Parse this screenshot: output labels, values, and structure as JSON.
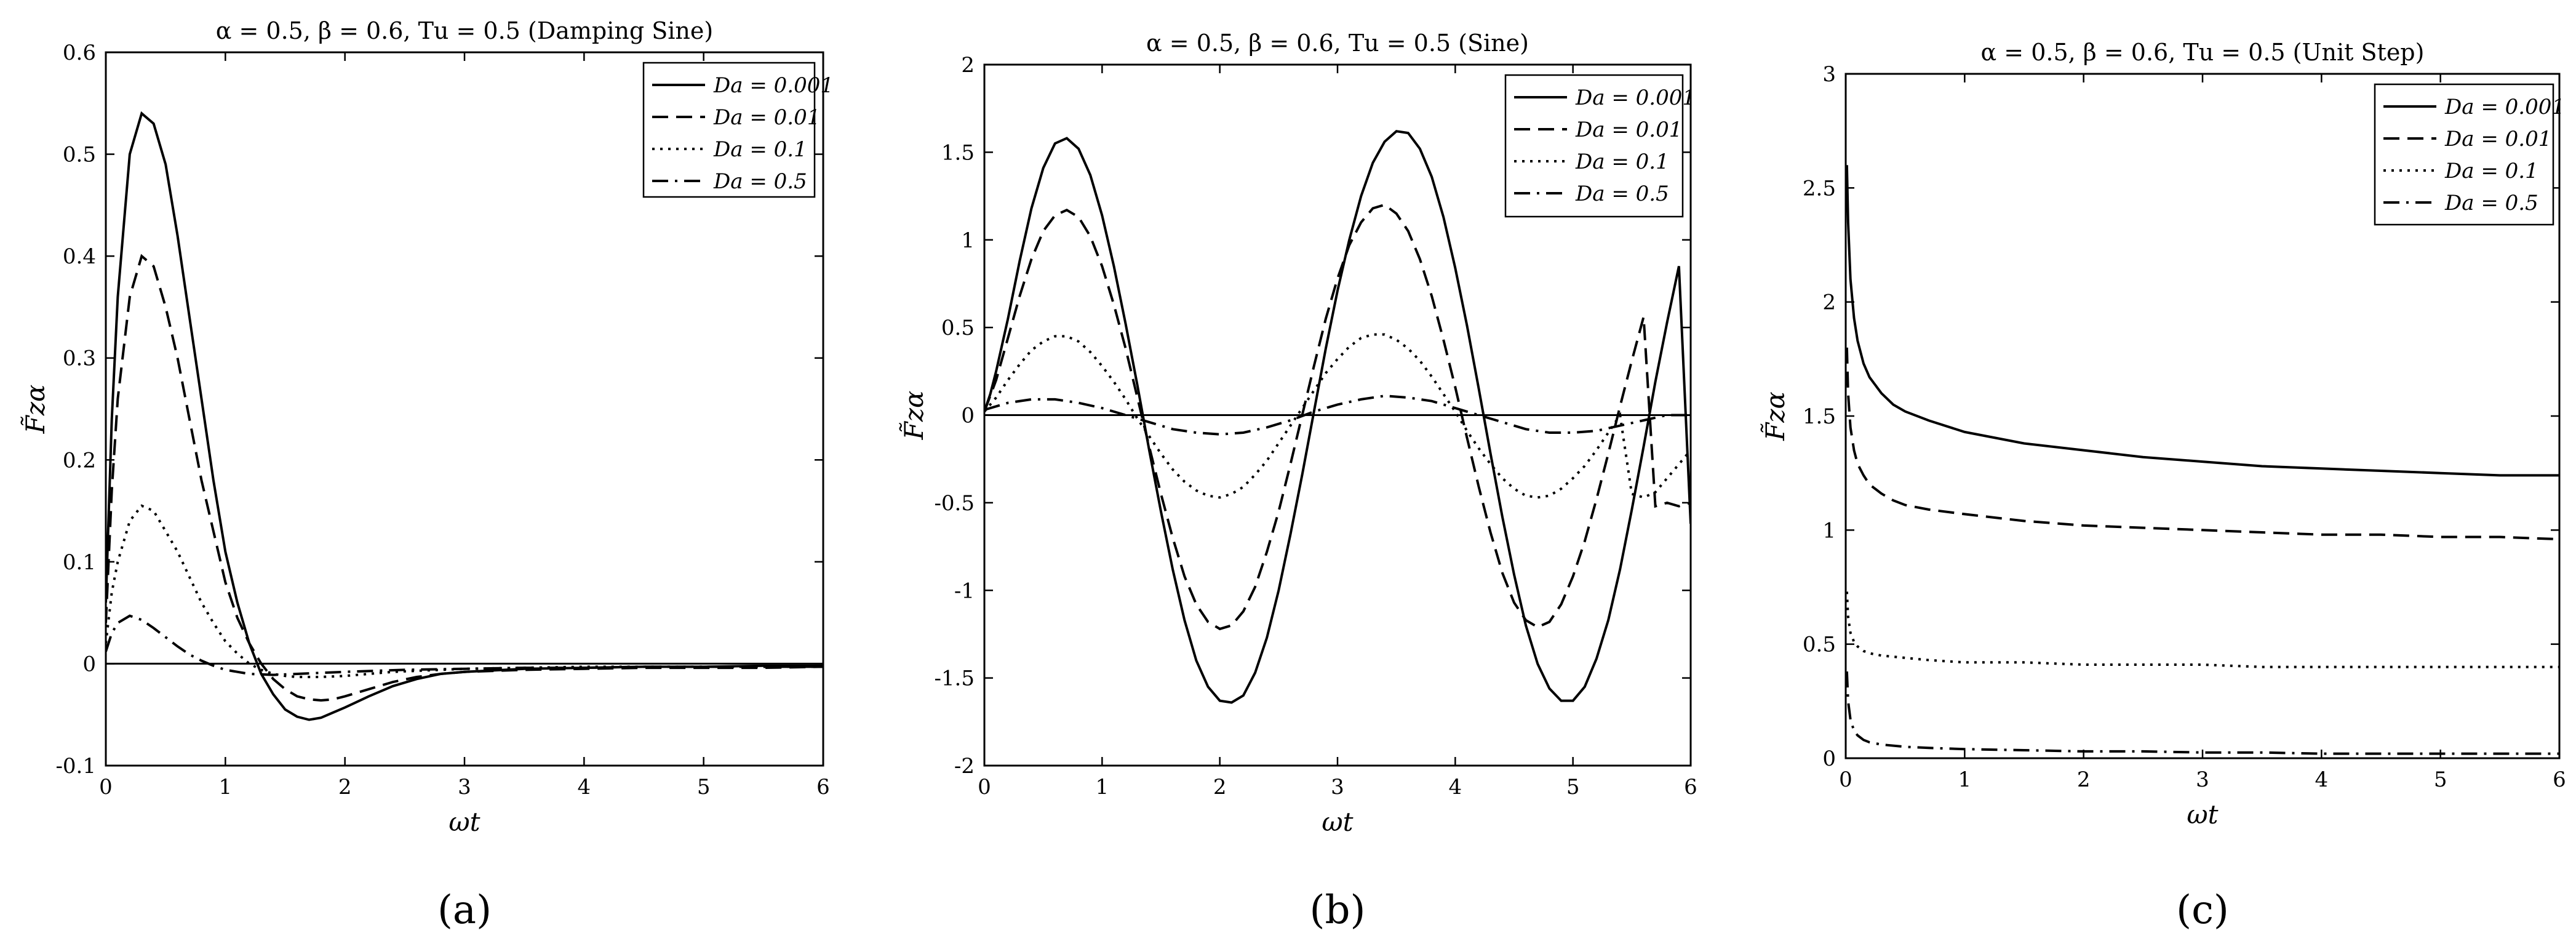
{
  "figure": {
    "ylabel": "F̃zα",
    "legend_entries": [
      "Da = 0.001",
      "Da = 0.01",
      "Da = 0.1",
      "Da = 0.5"
    ],
    "legend_dashes": [
      "solid",
      "dashed",
      "dotted",
      "dash-dot"
    ]
  },
  "chart_data": [
    {
      "type": "line",
      "panel_label": "(a)",
      "title": "α = 0.5, β = 0.6, Tu = 0.5 (Damping Sine)",
      "xlabel": "ωt",
      "ylabel": "F̃zα",
      "xlim": [
        0,
        6
      ],
      "ylim": [
        -0.1,
        0.6
      ],
      "xticks": [
        0,
        1,
        2,
        3,
        4,
        5,
        6
      ],
      "xtick_labels": [
        "0",
        "1",
        "2",
        "3",
        "4",
        "5",
        "6"
      ],
      "yticks": [
        -0.1,
        0,
        0.1,
        0.2,
        0.3,
        0.4,
        0.5,
        0.6
      ],
      "ytick_labels": [
        "-0.1",
        "0",
        "0.1",
        "0.2",
        "0.3",
        "0.4",
        "0.5",
        "0.6"
      ],
      "zero_line": true,
      "legend": "top-right",
      "series": [
        {
          "name": "Da = 0.001",
          "dash": "solid",
          "x": [
            0,
            0.05,
            0.1,
            0.2,
            0.3,
            0.4,
            0.5,
            0.6,
            0.7,
            0.8,
            0.9,
            1.0,
            1.1,
            1.2,
            1.3,
            1.4,
            1.5,
            1.6,
            1.7,
            1.8,
            1.9,
            2.0,
            2.2,
            2.4,
            2.6,
            2.8,
            3.0,
            3.5,
            4.0,
            4.5,
            5.0,
            5.5,
            6.0
          ],
          "y": [
            0.06,
            0.24,
            0.36,
            0.5,
            0.54,
            0.53,
            0.49,
            0.42,
            0.34,
            0.26,
            0.18,
            0.11,
            0.06,
            0.02,
            -0.01,
            -0.03,
            -0.045,
            -0.052,
            -0.055,
            -0.053,
            -0.048,
            -0.043,
            -0.032,
            -0.022,
            -0.015,
            -0.01,
            -0.008,
            -0.005,
            -0.004,
            -0.003,
            -0.003,
            -0.002,
            -0.002
          ]
        },
        {
          "name": "Da = 0.01",
          "dash": "dashed",
          "x": [
            0,
            0.05,
            0.1,
            0.2,
            0.3,
            0.4,
            0.5,
            0.6,
            0.7,
            0.8,
            0.9,
            1.0,
            1.1,
            1.2,
            1.3,
            1.4,
            1.5,
            1.6,
            1.7,
            1.8,
            1.9,
            2.0,
            2.2,
            2.4,
            2.6,
            2.8,
            3.0,
            3.5,
            4.0,
            4.5,
            5.0,
            5.5,
            6.0
          ],
          "y": [
            0.04,
            0.17,
            0.26,
            0.36,
            0.4,
            0.39,
            0.35,
            0.3,
            0.24,
            0.18,
            0.13,
            0.08,
            0.045,
            0.02,
            0,
            -0.015,
            -0.025,
            -0.032,
            -0.035,
            -0.036,
            -0.035,
            -0.032,
            -0.025,
            -0.018,
            -0.013,
            -0.01,
            -0.008,
            -0.006,
            -0.005,
            -0.004,
            -0.004,
            -0.004,
            -0.003
          ]
        },
        {
          "name": "Da = 0.1",
          "dash": "dotted",
          "x": [
            0,
            0.05,
            0.1,
            0.2,
            0.3,
            0.4,
            0.5,
            0.6,
            0.7,
            0.8,
            0.9,
            1.0,
            1.1,
            1.2,
            1.3,
            1.4,
            1.5,
            1.6,
            1.8,
            2.0,
            2.2,
            2.4,
            2.6,
            2.8,
            3.0,
            3.5,
            4.0,
            4.5,
            5.0,
            5.5,
            6.0
          ],
          "y": [
            0.02,
            0.07,
            0.1,
            0.14,
            0.155,
            0.15,
            0.13,
            0.11,
            0.085,
            0.06,
            0.04,
            0.022,
            0.01,
            0,
            -0.006,
            -0.01,
            -0.012,
            -0.013,
            -0.013,
            -0.012,
            -0.01,
            -0.008,
            -0.007,
            -0.006,
            -0.005,
            -0.004,
            -0.003,
            -0.003,
            -0.003,
            -0.003,
            -0.003
          ]
        },
        {
          "name": "Da = 0.5",
          "dash": "dash-dot",
          "x": [
            0,
            0.05,
            0.1,
            0.2,
            0.3,
            0.4,
            0.5,
            0.6,
            0.7,
            0.8,
            0.9,
            1.0,
            1.2,
            1.4,
            1.6,
            1.8,
            2.0,
            2.5,
            3.0,
            3.5,
            4.0,
            4.5,
            5.0,
            5.5,
            6.0
          ],
          "y": [
            0.012,
            0.03,
            0.04,
            0.047,
            0.043,
            0.035,
            0.026,
            0.017,
            0.009,
            0.003,
            -0.002,
            -0.006,
            -0.01,
            -0.011,
            -0.01,
            -0.009,
            -0.008,
            -0.006,
            -0.005,
            -0.004,
            -0.004,
            -0.003,
            -0.003,
            -0.003,
            -0.003
          ]
        }
      ]
    },
    {
      "type": "line",
      "panel_label": "(b)",
      "title": "α = 0.5, β = 0.6, Tu = 0.5 (Sine)",
      "xlabel": "ωt",
      "ylabel": "F̃zα",
      "xlim": [
        0,
        6
      ],
      "ylim": [
        -2,
        2
      ],
      "xticks": [
        0,
        1,
        2,
        3,
        4,
        5,
        6
      ],
      "xtick_labels": [
        "0",
        "1",
        "2",
        "3",
        "4",
        "5",
        "6"
      ],
      "yticks": [
        -2,
        -1.5,
        -1,
        -0.5,
        0,
        0.5,
        1,
        1.5,
        2
      ],
      "ytick_labels": [
        "-2",
        "-1.5",
        "-1",
        "-0.5",
        "0",
        "0.5",
        "1",
        "1.5",
        "2"
      ],
      "zero_line": true,
      "legend": "top-right",
      "series": [
        {
          "name": "Da = 0.001",
          "dash": "solid",
          "x": [
            0,
            0.05,
            0.1,
            0.2,
            0.3,
            0.4,
            0.5,
            0.6,
            0.7,
            0.8,
            0.9,
            1.0,
            1.1,
            1.2,
            1.3,
            1.4,
            1.5,
            1.6,
            1.7,
            1.8,
            1.9,
            2.0,
            2.1,
            2.2,
            2.3,
            2.4,
            2.5,
            2.6,
            2.7,
            2.8,
            2.9,
            3.0,
            3.1,
            3.2,
            3.3,
            3.4,
            3.5,
            3.6,
            3.7,
            3.8,
            3.9,
            4.0,
            4.1,
            4.2,
            4.3,
            4.4,
            4.5,
            4.6,
            4.7,
            4.8,
            4.9,
            5.0,
            5.1,
            5.2,
            5.3,
            5.4,
            5.5,
            5.6,
            5.7,
            5.8,
            5.9,
            6.0
          ],
          "y": [
            0.02,
            0.12,
            0.25,
            0.55,
            0.88,
            1.18,
            1.41,
            1.55,
            1.58,
            1.52,
            1.37,
            1.14,
            0.85,
            0.52,
            0.17,
            -0.2,
            -0.55,
            -0.88,
            -1.17,
            -1.4,
            -1.55,
            -1.63,
            -1.64,
            -1.6,
            -1.47,
            -1.27,
            -1.0,
            -0.68,
            -0.34,
            0.02,
            0.38,
            0.71,
            1.0,
            1.25,
            1.44,
            1.56,
            1.62,
            1.61,
            1.52,
            1.36,
            1.13,
            0.84,
            0.51,
            0.15,
            -0.22,
            -0.58,
            -0.91,
            -1.2,
            -1.42,
            -1.56,
            -1.63,
            -1.63,
            -1.55,
            -1.39,
            -1.17,
            -0.88,
            -0.54,
            -0.18,
            0.19,
            0.53,
            0.85,
            -0.62
          ]
        },
        {
          "name": "Da = 0.01",
          "dash": "dashed",
          "x": [
            0,
            0.1,
            0.2,
            0.3,
            0.4,
            0.5,
            0.6,
            0.7,
            0.8,
            0.9,
            1.0,
            1.1,
            1.2,
            1.3,
            1.4,
            1.5,
            1.6,
            1.7,
            1.8,
            1.9,
            2.0,
            2.1,
            2.2,
            2.3,
            2.4,
            2.5,
            2.6,
            2.7,
            2.8,
            2.9,
            3.0,
            3.1,
            3.2,
            3.3,
            3.4,
            3.5,
            3.6,
            3.7,
            3.8,
            3.9,
            4.0,
            4.1,
            4.2,
            4.3,
            4.4,
            4.5,
            4.6,
            4.7,
            4.8,
            4.9,
            5.0,
            5.1,
            5.2,
            5.3,
            5.4,
            5.5,
            5.6,
            5.7,
            5.8,
            5.9,
            6.0
          ],
          "y": [
            0.02,
            0.2,
            0.44,
            0.68,
            0.89,
            1.05,
            1.14,
            1.17,
            1.13,
            1.02,
            0.85,
            0.63,
            0.38,
            0.1,
            -0.18,
            -0.45,
            -0.7,
            -0.92,
            -1.08,
            -1.18,
            -1.22,
            -1.2,
            -1.12,
            -0.98,
            -0.78,
            -0.55,
            -0.28,
            0,
            0.28,
            0.55,
            0.78,
            0.97,
            1.1,
            1.18,
            1.2,
            1.15,
            1.05,
            0.89,
            0.68,
            0.43,
            0.16,
            -0.13,
            -0.41,
            -0.67,
            -0.9,
            -1.07,
            -1.17,
            -1.21,
            -1.18,
            -1.08,
            -0.92,
            -0.72,
            -0.48,
            -0.22,
            0.05,
            0.31,
            0.56,
            -0.52,
            -0.5,
            -0.52,
            -0.5
          ]
        },
        {
          "name": "Da = 0.1",
          "dash": "dotted",
          "x": [
            0,
            0.1,
            0.2,
            0.3,
            0.4,
            0.5,
            0.6,
            0.7,
            0.8,
            0.9,
            1.0,
            1.1,
            1.2,
            1.3,
            1.4,
            1.5,
            1.6,
            1.7,
            1.8,
            1.9,
            2.0,
            2.1,
            2.2,
            2.3,
            2.4,
            2.5,
            2.6,
            2.7,
            2.8,
            2.9,
            3.0,
            3.1,
            3.2,
            3.3,
            3.4,
            3.5,
            3.6,
            3.7,
            3.8,
            3.9,
            4.0,
            4.1,
            4.2,
            4.3,
            4.4,
            4.5,
            4.6,
            4.7,
            4.8,
            4.9,
            5.0,
            5.1,
            5.2,
            5.3,
            5.4,
            5.5,
            5.6,
            5.7,
            5.8,
            5.9,
            6.0
          ],
          "y": [
            0.02,
            0.1,
            0.2,
            0.29,
            0.37,
            0.42,
            0.45,
            0.45,
            0.42,
            0.36,
            0.28,
            0.19,
            0.09,
            -0.02,
            -0.12,
            -0.22,
            -0.31,
            -0.38,
            -0.43,
            -0.46,
            -0.47,
            -0.45,
            -0.41,
            -0.34,
            -0.26,
            -0.16,
            -0.06,
            0.04,
            0.14,
            0.24,
            0.32,
            0.39,
            0.44,
            0.46,
            0.46,
            0.43,
            0.38,
            0.31,
            0.22,
            0.12,
            0.02,
            -0.09,
            -0.19,
            -0.28,
            -0.36,
            -0.42,
            -0.46,
            -0.47,
            -0.46,
            -0.42,
            -0.36,
            -0.29,
            -0.2,
            -0.1,
            0,
            -0.45,
            -0.47,
            -0.44,
            -0.36,
            -0.28,
            -0.2
          ]
        },
        {
          "name": "Da = 0.5",
          "dash": "dash-dot",
          "x": [
            0,
            0.2,
            0.4,
            0.6,
            0.8,
            1.0,
            1.2,
            1.4,
            1.6,
            1.8,
            2.0,
            2.2,
            2.4,
            2.6,
            2.8,
            3.0,
            3.2,
            3.4,
            3.6,
            3.8,
            4.0,
            4.2,
            4.4,
            4.6,
            4.8,
            5.0,
            5.2,
            5.4,
            5.6,
            5.8,
            6.0
          ],
          "y": [
            0.03,
            0.07,
            0.09,
            0.09,
            0.07,
            0.04,
            0.0,
            -0.04,
            -0.08,
            -0.1,
            -0.11,
            -0.1,
            -0.07,
            -0.03,
            0.02,
            0.06,
            0.09,
            0.11,
            0.1,
            0.08,
            0.04,
            0.0,
            -0.04,
            -0.08,
            -0.1,
            -0.1,
            -0.09,
            -0.06,
            -0.03,
            0.0,
            0.0
          ]
        }
      ]
    },
    {
      "type": "line",
      "panel_label": "(c)",
      "title": "α = 0.5, β = 0.6, Tu = 0.5 (Unit Step)",
      "xlabel": "ωt",
      "ylabel": "F̃zα",
      "xlim": [
        0,
        6
      ],
      "ylim": [
        0,
        3
      ],
      "xticks": [
        0,
        1,
        2,
        3,
        4,
        5,
        6
      ],
      "xtick_labels": [
        "0",
        "1",
        "2",
        "3",
        "4",
        "5",
        "6"
      ],
      "yticks": [
        0,
        0.5,
        1,
        1.5,
        2,
        2.5,
        3
      ],
      "ytick_labels": [
        "0",
        "0.5",
        "1",
        "1.5",
        "2",
        "2.5",
        "3"
      ],
      "zero_line": false,
      "legend": "top-right",
      "series": [
        {
          "name": "Da = 0.001",
          "dash": "solid",
          "x": [
            0.01,
            0.02,
            0.04,
            0.07,
            0.1,
            0.15,
            0.2,
            0.3,
            0.4,
            0.5,
            0.7,
            1.0,
            1.5,
            2.0,
            2.5,
            3.0,
            3.5,
            4.0,
            4.5,
            5.0,
            5.5,
            6.0
          ],
          "y": [
            2.6,
            2.35,
            2.1,
            1.93,
            1.83,
            1.73,
            1.67,
            1.6,
            1.55,
            1.52,
            1.48,
            1.43,
            1.38,
            1.35,
            1.32,
            1.3,
            1.28,
            1.27,
            1.26,
            1.25,
            1.24,
            1.24
          ]
        },
        {
          "name": "Da = 0.01",
          "dash": "dashed",
          "x": [
            0.01,
            0.02,
            0.04,
            0.07,
            0.1,
            0.15,
            0.2,
            0.3,
            0.4,
            0.5,
            0.7,
            1.0,
            1.5,
            2.0,
            2.5,
            3.0,
            3.5,
            4.0,
            4.5,
            5.0,
            5.5,
            6.0
          ],
          "y": [
            1.8,
            1.6,
            1.45,
            1.35,
            1.29,
            1.24,
            1.2,
            1.16,
            1.13,
            1.11,
            1.09,
            1.07,
            1.04,
            1.02,
            1.01,
            1.0,
            0.99,
            0.98,
            0.98,
            0.97,
            0.97,
            0.96
          ]
        },
        {
          "name": "Da = 0.1",
          "dash": "dotted",
          "x": [
            0.01,
            0.02,
            0.04,
            0.07,
            0.1,
            0.15,
            0.2,
            0.3,
            0.5,
            0.7,
            1.0,
            1.5,
            2.0,
            2.5,
            3.0,
            3.5,
            4.0,
            4.5,
            5.0,
            5.5,
            6.0
          ],
          "y": [
            0.73,
            0.62,
            0.55,
            0.51,
            0.49,
            0.47,
            0.46,
            0.45,
            0.44,
            0.43,
            0.42,
            0.42,
            0.41,
            0.41,
            0.41,
            0.4,
            0.4,
            0.4,
            0.4,
            0.4,
            0.4
          ]
        },
        {
          "name": "Da = 0.5",
          "dash": "dash-dot",
          "x": [
            0.01,
            0.02,
            0.04,
            0.07,
            0.1,
            0.15,
            0.2,
            0.3,
            0.5,
            0.7,
            1.0,
            1.5,
            2.0,
            2.5,
            3.0,
            3.5,
            4.0,
            4.5,
            5.0,
            5.5,
            6.0
          ],
          "y": [
            0.38,
            0.25,
            0.17,
            0.12,
            0.1,
            0.08,
            0.07,
            0.06,
            0.05,
            0.045,
            0.04,
            0.035,
            0.03,
            0.03,
            0.025,
            0.025,
            0.02,
            0.02,
            0.02,
            0.02,
            0.02
          ]
        }
      ]
    }
  ]
}
